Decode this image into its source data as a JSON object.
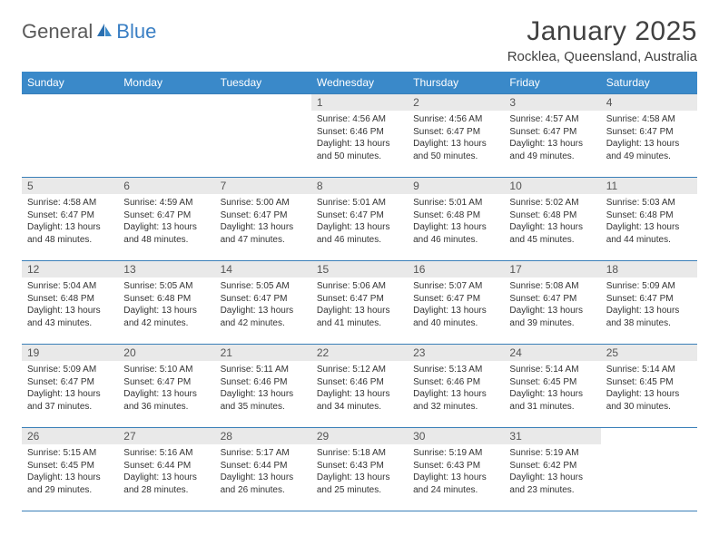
{
  "logo": {
    "text_general": "General",
    "text_blue": "Blue"
  },
  "title": "January 2025",
  "location": "Rocklea, Queensland, Australia",
  "colors": {
    "header_bg": "#3a89c9",
    "header_text": "#ffffff",
    "daynum_bg": "#e9e9e9",
    "row_border": "#3a7fb8",
    "logo_gray": "#5a5a5a",
    "logo_blue": "#3a7fc4"
  },
  "weekdays": [
    "Sunday",
    "Monday",
    "Tuesday",
    "Wednesday",
    "Thursday",
    "Friday",
    "Saturday"
  ],
  "weeks": [
    [
      {
        "day": "",
        "sunrise": "",
        "sunset": "",
        "daylight": "",
        "empty": true
      },
      {
        "day": "",
        "sunrise": "",
        "sunset": "",
        "daylight": "",
        "empty": true
      },
      {
        "day": "",
        "sunrise": "",
        "sunset": "",
        "daylight": "",
        "empty": true
      },
      {
        "day": "1",
        "sunrise": "Sunrise: 4:56 AM",
        "sunset": "Sunset: 6:46 PM",
        "daylight": "Daylight: 13 hours and 50 minutes."
      },
      {
        "day": "2",
        "sunrise": "Sunrise: 4:56 AM",
        "sunset": "Sunset: 6:47 PM",
        "daylight": "Daylight: 13 hours and 50 minutes."
      },
      {
        "day": "3",
        "sunrise": "Sunrise: 4:57 AM",
        "sunset": "Sunset: 6:47 PM",
        "daylight": "Daylight: 13 hours and 49 minutes."
      },
      {
        "day": "4",
        "sunrise": "Sunrise: 4:58 AM",
        "sunset": "Sunset: 6:47 PM",
        "daylight": "Daylight: 13 hours and 49 minutes."
      }
    ],
    [
      {
        "day": "5",
        "sunrise": "Sunrise: 4:58 AM",
        "sunset": "Sunset: 6:47 PM",
        "daylight": "Daylight: 13 hours and 48 minutes."
      },
      {
        "day": "6",
        "sunrise": "Sunrise: 4:59 AM",
        "sunset": "Sunset: 6:47 PM",
        "daylight": "Daylight: 13 hours and 48 minutes."
      },
      {
        "day": "7",
        "sunrise": "Sunrise: 5:00 AM",
        "sunset": "Sunset: 6:47 PM",
        "daylight": "Daylight: 13 hours and 47 minutes."
      },
      {
        "day": "8",
        "sunrise": "Sunrise: 5:01 AM",
        "sunset": "Sunset: 6:47 PM",
        "daylight": "Daylight: 13 hours and 46 minutes."
      },
      {
        "day": "9",
        "sunrise": "Sunrise: 5:01 AM",
        "sunset": "Sunset: 6:48 PM",
        "daylight": "Daylight: 13 hours and 46 minutes."
      },
      {
        "day": "10",
        "sunrise": "Sunrise: 5:02 AM",
        "sunset": "Sunset: 6:48 PM",
        "daylight": "Daylight: 13 hours and 45 minutes."
      },
      {
        "day": "11",
        "sunrise": "Sunrise: 5:03 AM",
        "sunset": "Sunset: 6:48 PM",
        "daylight": "Daylight: 13 hours and 44 minutes."
      }
    ],
    [
      {
        "day": "12",
        "sunrise": "Sunrise: 5:04 AM",
        "sunset": "Sunset: 6:48 PM",
        "daylight": "Daylight: 13 hours and 43 minutes."
      },
      {
        "day": "13",
        "sunrise": "Sunrise: 5:05 AM",
        "sunset": "Sunset: 6:48 PM",
        "daylight": "Daylight: 13 hours and 42 minutes."
      },
      {
        "day": "14",
        "sunrise": "Sunrise: 5:05 AM",
        "sunset": "Sunset: 6:47 PM",
        "daylight": "Daylight: 13 hours and 42 minutes."
      },
      {
        "day": "15",
        "sunrise": "Sunrise: 5:06 AM",
        "sunset": "Sunset: 6:47 PM",
        "daylight": "Daylight: 13 hours and 41 minutes."
      },
      {
        "day": "16",
        "sunrise": "Sunrise: 5:07 AM",
        "sunset": "Sunset: 6:47 PM",
        "daylight": "Daylight: 13 hours and 40 minutes."
      },
      {
        "day": "17",
        "sunrise": "Sunrise: 5:08 AM",
        "sunset": "Sunset: 6:47 PM",
        "daylight": "Daylight: 13 hours and 39 minutes."
      },
      {
        "day": "18",
        "sunrise": "Sunrise: 5:09 AM",
        "sunset": "Sunset: 6:47 PM",
        "daylight": "Daylight: 13 hours and 38 minutes."
      }
    ],
    [
      {
        "day": "19",
        "sunrise": "Sunrise: 5:09 AM",
        "sunset": "Sunset: 6:47 PM",
        "daylight": "Daylight: 13 hours and 37 minutes."
      },
      {
        "day": "20",
        "sunrise": "Sunrise: 5:10 AM",
        "sunset": "Sunset: 6:47 PM",
        "daylight": "Daylight: 13 hours and 36 minutes."
      },
      {
        "day": "21",
        "sunrise": "Sunrise: 5:11 AM",
        "sunset": "Sunset: 6:46 PM",
        "daylight": "Daylight: 13 hours and 35 minutes."
      },
      {
        "day": "22",
        "sunrise": "Sunrise: 5:12 AM",
        "sunset": "Sunset: 6:46 PM",
        "daylight": "Daylight: 13 hours and 34 minutes."
      },
      {
        "day": "23",
        "sunrise": "Sunrise: 5:13 AM",
        "sunset": "Sunset: 6:46 PM",
        "daylight": "Daylight: 13 hours and 32 minutes."
      },
      {
        "day": "24",
        "sunrise": "Sunrise: 5:14 AM",
        "sunset": "Sunset: 6:45 PM",
        "daylight": "Daylight: 13 hours and 31 minutes."
      },
      {
        "day": "25",
        "sunrise": "Sunrise: 5:14 AM",
        "sunset": "Sunset: 6:45 PM",
        "daylight": "Daylight: 13 hours and 30 minutes."
      }
    ],
    [
      {
        "day": "26",
        "sunrise": "Sunrise: 5:15 AM",
        "sunset": "Sunset: 6:45 PM",
        "daylight": "Daylight: 13 hours and 29 minutes."
      },
      {
        "day": "27",
        "sunrise": "Sunrise: 5:16 AM",
        "sunset": "Sunset: 6:44 PM",
        "daylight": "Daylight: 13 hours and 28 minutes."
      },
      {
        "day": "28",
        "sunrise": "Sunrise: 5:17 AM",
        "sunset": "Sunset: 6:44 PM",
        "daylight": "Daylight: 13 hours and 26 minutes."
      },
      {
        "day": "29",
        "sunrise": "Sunrise: 5:18 AM",
        "sunset": "Sunset: 6:43 PM",
        "daylight": "Daylight: 13 hours and 25 minutes."
      },
      {
        "day": "30",
        "sunrise": "Sunrise: 5:19 AM",
        "sunset": "Sunset: 6:43 PM",
        "daylight": "Daylight: 13 hours and 24 minutes."
      },
      {
        "day": "31",
        "sunrise": "Sunrise: 5:19 AM",
        "sunset": "Sunset: 6:42 PM",
        "daylight": "Daylight: 13 hours and 23 minutes."
      },
      {
        "day": "",
        "sunrise": "",
        "sunset": "",
        "daylight": "",
        "empty": true
      }
    ]
  ]
}
